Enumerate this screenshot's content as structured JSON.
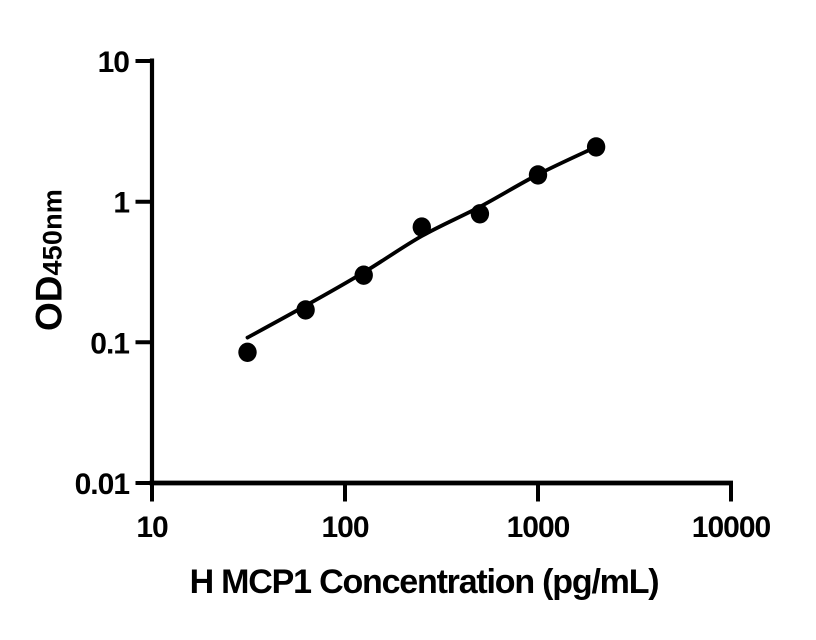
{
  "figure": {
    "background_color": "#ffffff",
    "ink_color": "#000000"
  },
  "chart_data": {
    "type": "scatter",
    "title": "",
    "xlabel": "H MCP1 Concentration (pg/mL)",
    "ylabel": "OD450nm",
    "ylabel_main": "OD",
    "ylabel_sub": "450nm",
    "x_scale": "log",
    "y_scale": "log",
    "xlim": [
      10,
      10000
    ],
    "ylim": [
      0.01,
      10
    ],
    "x_ticks": [
      10,
      100,
      1000,
      10000
    ],
    "x_tick_labels": [
      "10",
      "100",
      "1000",
      "10000"
    ],
    "y_ticks": [
      0.01,
      0.1,
      1,
      10
    ],
    "y_tick_labels": [
      "0.01",
      "0.1",
      "1",
      "10"
    ],
    "grid": false,
    "legend": false,
    "series": [
      {
        "name": "standard-points",
        "type": "scatter",
        "marker": "filled-circle",
        "color": "#000000",
        "x": [
          31.25,
          62.5,
          125,
          250,
          500,
          1000,
          2000
        ],
        "y": [
          0.085,
          0.17,
          0.3,
          0.66,
          0.82,
          1.55,
          2.45
        ]
      },
      {
        "name": "fit-curve",
        "type": "line",
        "color": "#000000",
        "x": [
          31.25,
          62.5,
          125,
          250,
          500,
          1000,
          2000
        ],
        "y": [
          0.108,
          0.182,
          0.314,
          0.57,
          0.92,
          1.56,
          2.45
        ]
      }
    ]
  }
}
